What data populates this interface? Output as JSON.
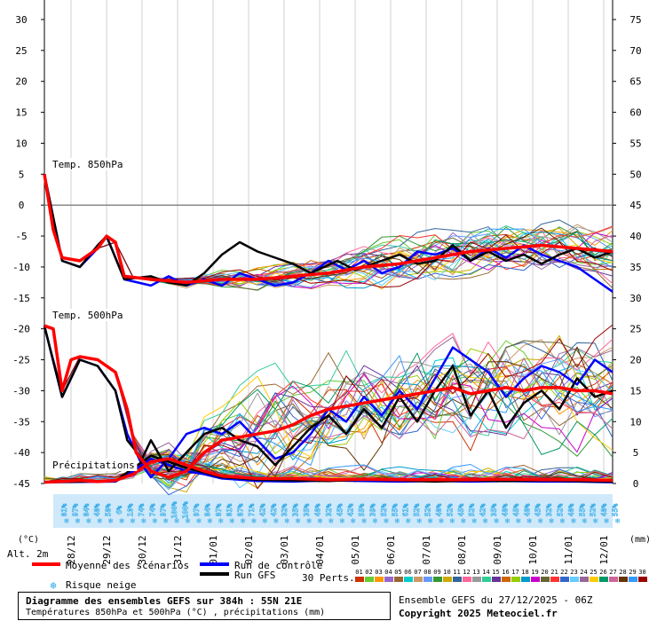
{
  "chart_data": {
    "type": "line",
    "title": "Diagramme des ensembles GEFS sur 384h : 55N 21E",
    "subtitle": "Températures 850hPa et 500hPa (°C) , précipitations (mm)",
    "left_axis": {
      "label": "(°C)",
      "ticks": [
        30,
        25,
        20,
        15,
        10,
        5,
        0,
        -5,
        -10,
        -15,
        -20,
        -25,
        -30,
        -35,
        -40,
        -45
      ],
      "range": [
        -45,
        30
      ]
    },
    "right_axis": {
      "label": "(mm)",
      "ticks": [
        75,
        70,
        65,
        60,
        55,
        50,
        45,
        40,
        35,
        30,
        25,
        20,
        15,
        10,
        5,
        0
      ],
      "range": [
        0,
        75
      ]
    },
    "x_ticks": [
      "28/12",
      "29/12",
      "30/12",
      "31/12",
      "01/01",
      "02/01",
      "03/01",
      "04/01",
      "05/01",
      "06/01",
      "07/01",
      "08/01",
      "09/01",
      "10/01",
      "11/01",
      "12/01"
    ],
    "x_range_hours": [
      0,
      384
    ],
    "altitude_label": "Alt. 2m",
    "panel_labels": {
      "t850": "Temp. 850hPa",
      "t500": "Temp. 500hPa",
      "precip": "Précipitations"
    },
    "snow_risk_percent": [
      "81%",
      "97%",
      "84%",
      "48%",
      "58%",
      "6%",
      "10%",
      "74%",
      "74%",
      "97%",
      "100%",
      "100%",
      "97%",
      "84%",
      "87%",
      "81%",
      "87%",
      "71%",
      "42%",
      "42%",
      "32%",
      "35%",
      "35%",
      "48%",
      "32%",
      "45%",
      "42%",
      "55%",
      "39%",
      "52%",
      "55%",
      "61%",
      "52%",
      "52%",
      "48%",
      "52%",
      "45%",
      "52%",
      "42%",
      "35%",
      "48%",
      "45%",
      "48%",
      "45%",
      "32%",
      "52%",
      "48%",
      "55%",
      "52%",
      "48%",
      "55%"
    ],
    "mean_t850": [
      [
        0,
        5
      ],
      [
        6,
        -4
      ],
      [
        12,
        -8.5
      ],
      [
        24,
        -9
      ],
      [
        36,
        -7
      ],
      [
        42,
        -5
      ],
      [
        48,
        -6
      ],
      [
        54,
        -11.5
      ],
      [
        72,
        -12
      ],
      [
        96,
        -12.5
      ],
      [
        120,
        -12
      ],
      [
        144,
        -12
      ],
      [
        168,
        -11.5
      ],
      [
        192,
        -11
      ],
      [
        216,
        -10
      ],
      [
        240,
        -9.5
      ],
      [
        264,
        -8.5
      ],
      [
        288,
        -7.5
      ],
      [
        312,
        -7
      ],
      [
        336,
        -6.5
      ],
      [
        360,
        -7
      ],
      [
        384,
        -7.5
      ]
    ],
    "gfs_t850": [
      [
        0,
        5
      ],
      [
        12,
        -9
      ],
      [
        24,
        -10
      ],
      [
        36,
        -6.5
      ],
      [
        42,
        -5
      ],
      [
        54,
        -12
      ],
      [
        72,
        -11.5
      ],
      [
        84,
        -12.5
      ],
      [
        96,
        -13
      ],
      [
        108,
        -11
      ],
      [
        120,
        -8
      ],
      [
        132,
        -6
      ],
      [
        144,
        -7.5
      ],
      [
        156,
        -8.5
      ],
      [
        168,
        -9.5
      ],
      [
        180,
        -11
      ],
      [
        198,
        -9
      ],
      [
        210,
        -10.5
      ],
      [
        222,
        -9.5
      ],
      [
        240,
        -8
      ],
      [
        252,
        -9.5
      ],
      [
        264,
        -9
      ],
      [
        276,
        -6.5
      ],
      [
        288,
        -9
      ],
      [
        300,
        -7.5
      ],
      [
        312,
        -9
      ],
      [
        324,
        -8
      ],
      [
        336,
        -9.5
      ],
      [
        348,
        -8
      ],
      [
        360,
        -7
      ],
      [
        372,
        -8.5
      ],
      [
        384,
        -7.5
      ]
    ],
    "control_t850": [
      [
        0,
        5
      ],
      [
        12,
        -9
      ],
      [
        24,
        -10
      ],
      [
        36,
        -7
      ],
      [
        42,
        -5
      ],
      [
        54,
        -12
      ],
      [
        72,
        -13
      ],
      [
        84,
        -11.5
      ],
      [
        96,
        -13
      ],
      [
        108,
        -12
      ],
      [
        120,
        -13
      ],
      [
        132,
        -11
      ],
      [
        144,
        -12
      ],
      [
        156,
        -13
      ],
      [
        168,
        -12.5
      ],
      [
        180,
        -11
      ],
      [
        192,
        -9
      ],
      [
        204,
        -10.5
      ],
      [
        216,
        -9
      ],
      [
        228,
        -11
      ],
      [
        240,
        -10
      ],
      [
        252,
        -7.5
      ],
      [
        264,
        -8
      ],
      [
        276,
        -7
      ],
      [
        288,
        -9
      ],
      [
        300,
        -7
      ],
      [
        312,
        -8.5
      ],
      [
        324,
        -6.5
      ],
      [
        336,
        -8
      ],
      [
        348,
        -9
      ],
      [
        360,
        -10
      ],
      [
        372,
        -12
      ],
      [
        384,
        -14
      ]
    ],
    "mean_t500": [
      [
        0,
        -19.5
      ],
      [
        6,
        -20
      ],
      [
        12,
        -30
      ],
      [
        18,
        -25
      ],
      [
        24,
        -24.5
      ],
      [
        36,
        -25
      ],
      [
        48,
        -27
      ],
      [
        56,
        -33
      ],
      [
        62,
        -40
      ],
      [
        72,
        -43
      ],
      [
        84,
        -44
      ],
      [
        96,
        -43
      ],
      [
        108,
        -40
      ],
      [
        120,
        -38
      ],
      [
        132,
        -37.5
      ],
      [
        144,
        -37
      ],
      [
        156,
        -36.5
      ],
      [
        168,
        -35.5
      ],
      [
        180,
        -34
      ],
      [
        192,
        -33
      ],
      [
        204,
        -32.5
      ],
      [
        216,
        -32
      ],
      [
        228,
        -31.5
      ],
      [
        240,
        -31
      ],
      [
        252,
        -30.5
      ],
      [
        264,
        -30
      ],
      [
        276,
        -29.5
      ],
      [
        288,
        -30.5
      ],
      [
        300,
        -30
      ],
      [
        312,
        -29.5
      ],
      [
        324,
        -30
      ],
      [
        336,
        -29.5
      ],
      [
        348,
        -29.5
      ],
      [
        360,
        -30
      ],
      [
        372,
        -30
      ],
      [
        384,
        -30.5
      ]
    ],
    "gfs_t500": [
      [
        0,
        -19.5
      ],
      [
        12,
        -31
      ],
      [
        24,
        -25
      ],
      [
        36,
        -26
      ],
      [
        48,
        -30
      ],
      [
        56,
        -38
      ],
      [
        66,
        -41
      ],
      [
        72,
        -38
      ],
      [
        84,
        -43
      ],
      [
        96,
        -40
      ],
      [
        108,
        -37
      ],
      [
        120,
        -36
      ],
      [
        132,
        -38
      ],
      [
        144,
        -39
      ],
      [
        156,
        -42
      ],
      [
        168,
        -39
      ],
      [
        180,
        -36
      ],
      [
        192,
        -34
      ],
      [
        204,
        -37
      ],
      [
        216,
        -33
      ],
      [
        228,
        -36
      ],
      [
        240,
        -31
      ],
      [
        252,
        -35
      ],
      [
        264,
        -30
      ],
      [
        276,
        -26
      ],
      [
        288,
        -34
      ],
      [
        300,
        -30
      ],
      [
        312,
        -36
      ],
      [
        324,
        -32
      ],
      [
        336,
        -30
      ],
      [
        348,
        -33
      ],
      [
        360,
        -28
      ],
      [
        372,
        -31
      ],
      [
        384,
        -30
      ]
    ],
    "control_t500": [
      [
        0,
        -19.5
      ],
      [
        12,
        -31
      ],
      [
        24,
        -25
      ],
      [
        36,
        -26
      ],
      [
        48,
        -30
      ],
      [
        56,
        -37
      ],
      [
        66,
        -42
      ],
      [
        72,
        -44
      ],
      [
        84,
        -41
      ],
      [
        96,
        -37
      ],
      [
        108,
        -36
      ],
      [
        120,
        -37
      ],
      [
        132,
        -35
      ],
      [
        144,
        -38
      ],
      [
        156,
        -41
      ],
      [
        168,
        -40
      ],
      [
        180,
        -37
      ],
      [
        192,
        -33
      ],
      [
        204,
        -35
      ],
      [
        216,
        -31
      ],
      [
        228,
        -34
      ],
      [
        240,
        -30
      ],
      [
        252,
        -33
      ],
      [
        264,
        -28
      ],
      [
        276,
        -23
      ],
      [
        288,
        -25
      ],
      [
        300,
        -27
      ],
      [
        312,
        -31
      ],
      [
        324,
        -28
      ],
      [
        336,
        -26
      ],
      [
        348,
        -27
      ],
      [
        360,
        -29
      ],
      [
        372,
        -25
      ],
      [
        384,
        -27
      ]
    ],
    "mean_precip_mm": [
      [
        0,
        0.2
      ],
      [
        24,
        0.5
      ],
      [
        36,
        0.3
      ],
      [
        48,
        0.5
      ],
      [
        60,
        1.5
      ],
      [
        72,
        3.5
      ],
      [
        84,
        4
      ],
      [
        96,
        3
      ],
      [
        108,
        2
      ],
      [
        120,
        1.2
      ],
      [
        144,
        0.8
      ],
      [
        168,
        0.8
      ],
      [
        192,
        0.6
      ],
      [
        216,
        0.7
      ],
      [
        240,
        0.6
      ],
      [
        264,
        0.6
      ],
      [
        288,
        0.6
      ],
      [
        312,
        0.7
      ],
      [
        336,
        0.6
      ],
      [
        360,
        0.6
      ],
      [
        384,
        0.5
      ]
    ],
    "control_precip_mm": [
      [
        0,
        0.2
      ],
      [
        48,
        0.3
      ],
      [
        60,
        2
      ],
      [
        72,
        4
      ],
      [
        84,
        3
      ],
      [
        96,
        2
      ],
      [
        108,
        1.5
      ],
      [
        120,
        0.8
      ],
      [
        144,
        0.4
      ],
      [
        168,
        0.3
      ],
      [
        192,
        0.5
      ],
      [
        216,
        0.4
      ],
      [
        240,
        0.3
      ],
      [
        264,
        0.4
      ],
      [
        288,
        0.3
      ],
      [
        312,
        0.4
      ],
      [
        336,
        0.3
      ],
      [
        360,
        0.3
      ],
      [
        384,
        0.2
      ]
    ],
    "gfs_precip_mm": [
      [
        0,
        0.2
      ],
      [
        48,
        0.4
      ],
      [
        60,
        2.5
      ],
      [
        72,
        4.5
      ],
      [
        84,
        3.5
      ],
      [
        96,
        2.5
      ],
      [
        108,
        1.8
      ],
      [
        120,
        1
      ],
      [
        144,
        0.6
      ],
      [
        168,
        0.5
      ],
      [
        192,
        0.4
      ],
      [
        216,
        0.6
      ],
      [
        240,
        0.5
      ],
      [
        264,
        0.3
      ],
      [
        288,
        0.5
      ],
      [
        312,
        0.4
      ],
      [
        336,
        0.5
      ],
      [
        360,
        0.4
      ],
      [
        384,
        0.3
      ]
    ],
    "legend": {
      "mean": "Moyenne des scénarios",
      "control": "Run de contrôle",
      "gfs": "Run GFS",
      "snow": "Risque neige",
      "perts": "30 Perts."
    },
    "perturbation_labels": [
      "01",
      "02",
      "03",
      "04",
      "05",
      "06",
      "07",
      "08",
      "09",
      "10",
      "11",
      "12",
      "13",
      "14",
      "15",
      "16",
      "17",
      "18",
      "19",
      "20",
      "21",
      "22",
      "23",
      "24",
      "25",
      "26",
      "27",
      "28",
      "29",
      "30"
    ],
    "colors": {
      "mean": "#ff0000",
      "control": "#0000ff",
      "gfs": "#000000",
      "snow": "#2aa8e6",
      "snow_band": "#cfe9fb",
      "perturbations": [
        "#cc3300",
        "#66cc33",
        "#ff9900",
        "#9966cc",
        "#996633",
        "#00cccc",
        "#cc9966",
        "#6699ff",
        "#339933",
        "#ccaa00",
        "#336699",
        "#ff6699",
        "#999999",
        "#33cc99",
        "#663399",
        "#cc6600",
        "#99cc00",
        "#0099cc",
        "#cc00cc",
        "#666633",
        "#ff3333",
        "#3366cc",
        "#66ccff",
        "#996699",
        "#ffcc00",
        "#009966",
        "#cc6699",
        "#663300",
        "#3399ff",
        "#990000"
      ]
    }
  },
  "footer": {
    "title": "Diagramme des ensembles GEFS sur 384h : 55N 21E",
    "subtitle": "Températures 850hPa et 500hPa (°C) , précipitations (mm)",
    "run": "Ensemble GEFS du 27/12/2025 - 06Z",
    "copyright": "Copyright 2025 Meteociel.fr"
  }
}
